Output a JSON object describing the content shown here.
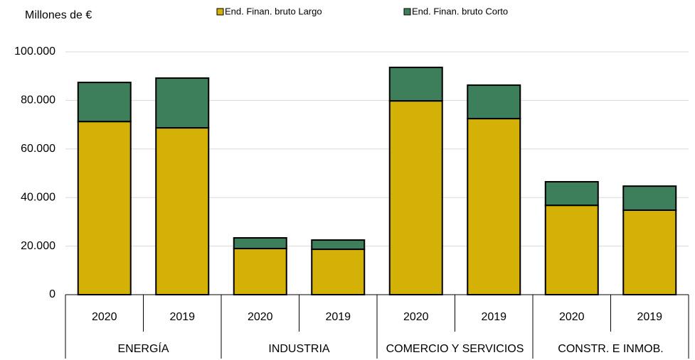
{
  "chart_data": {
    "type": "stacked-bar",
    "y_label": "Millones de €",
    "categories": [
      "2020",
      "2019",
      "2020",
      "2019",
      "2020",
      "2019",
      "2020",
      "2019"
    ],
    "groups": [
      "ENERGÍA",
      "INDUSTRIA",
      "COMERCIO Y SERVICIOS",
      "CONSTR. E INMOB."
    ],
    "series": [
      {
        "name": "End. Finan. bruto Largo",
        "color": "#d4b106",
        "values": [
          71300,
          68700,
          19000,
          18700,
          79800,
          72500,
          36800,
          34800
        ]
      },
      {
        "name": "End. Finan. bruto  Corto",
        "color": "#3d7f5a",
        "values": [
          16100,
          20500,
          4400,
          3800,
          13800,
          13800,
          9700,
          9900
        ]
      }
    ],
    "ylim": [
      0,
      100000
    ],
    "yticks": [
      0,
      {
        "value": 20000,
        "label": "20.000"
      },
      {
        "value": 40000,
        "label": "40.000"
      },
      {
        "value": 60000,
        "label": "60.000"
      },
      {
        "value": 80000,
        "label": "80.000"
      },
      {
        "value": 100000,
        "label": "100.000"
      }
    ],
    "grid": true
  }
}
